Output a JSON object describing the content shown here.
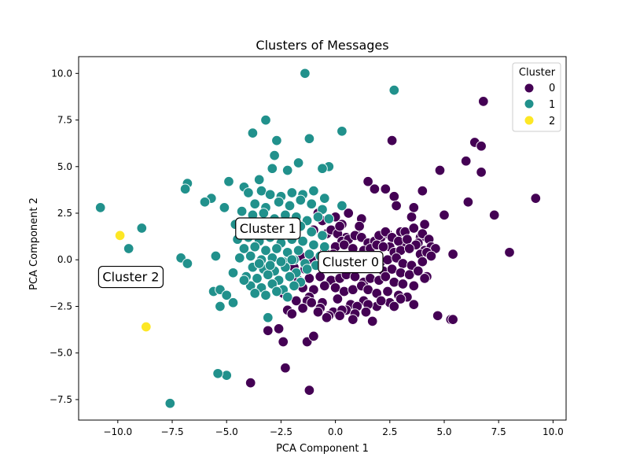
{
  "chart_data": {
    "type": "scatter",
    "title": "Clusters of Messages",
    "xlabel": "PCA Component 1",
    "ylabel": "PCA Component 2",
    "xlim": [
      -11.8,
      10.6
    ],
    "ylim": [
      -8.6,
      10.9
    ],
    "xticks": [
      -10.0,
      -7.5,
      -5.0,
      -2.5,
      0.0,
      2.5,
      5.0,
      7.5,
      10.0
    ],
    "yticks": [
      -7.5,
      -5.0,
      -2.5,
      0.0,
      2.5,
      5.0,
      7.5,
      10.0
    ],
    "xtick_labels": [
      "−10.0",
      "−7.5",
      "−5.0",
      "−2.5",
      "0.0",
      "2.5",
      "5.0",
      "7.5",
      "10.0"
    ],
    "ytick_labels": [
      "−7.5",
      "−5.0",
      "−2.5",
      "0.0",
      "2.5",
      "5.0",
      "7.5",
      "10.0"
    ],
    "grid": false,
    "legend": {
      "title": "Cluster",
      "placement": "top-right",
      "entries": [
        {
          "label": "0",
          "color": "#440154"
        },
        {
          "label": "1",
          "color": "#21918c"
        },
        {
          "label": "2",
          "color": "#fde725"
        }
      ]
    },
    "annotations": [
      {
        "text": "Cluster 1",
        "x": -3.1,
        "y": 1.7
      },
      {
        "text": "Cluster 0",
        "x": 0.7,
        "y": -0.1
      },
      {
        "text": "Cluster 2",
        "x": -9.4,
        "y": -0.9
      }
    ],
    "series": [
      {
        "name": "0",
        "color": "#440154",
        "x": [
          6.8,
          2.6,
          6.4,
          6.7,
          9.2,
          4.8,
          4.0,
          6.0,
          6.7,
          6.1,
          7.3,
          5.0,
          8.0,
          5.4,
          4.7,
          5.3,
          5.4,
          1.5,
          1.8,
          2.3,
          2.7,
          2.8,
          3.0,
          3.5,
          3.6,
          4.1,
          3.9,
          -2.3,
          -3.1,
          -2.6,
          -2.4,
          -1.3,
          -1.0,
          -2.2,
          -3.9,
          -1.2,
          1.7,
          -0.4,
          0.5,
          1.0,
          2.1,
          2.4,
          3.2,
          3.6,
          4.0,
          4.3,
          3.8,
          3.2,
          2.5,
          -0.2,
          0.1,
          0.3,
          0.6,
          0.9,
          1.2,
          1.5,
          1.8,
          2.0,
          2.3,
          2.6,
          2.9,
          3.3,
          3.7,
          4.1,
          4.4,
          4.6,
          -0.5,
          0.0,
          0.4,
          0.8,
          1.3,
          1.6,
          1.9,
          2.2,
          2.7,
          3.0,
          3.4,
          3.9,
          4.2,
          4.4,
          -1.6,
          -1.1,
          -0.6,
          -0.1,
          0.3,
          0.7,
          1.1,
          1.4,
          1.7,
          2.1,
          2.4,
          2.8,
          3.1,
          3.5,
          4.0,
          -1.9,
          -1.4,
          -0.9,
          -0.4,
          0.2,
          0.6,
          1.0,
          1.4,
          1.8,
          2.2,
          2.6,
          3.0,
          3.4,
          3.8,
          4.2,
          -1.7,
          -1.2,
          -0.7,
          -0.2,
          0.2,
          0.5,
          0.9,
          1.3,
          1.6,
          2.0,
          2.3,
          2.7,
          3.1,
          3.6,
          4.1,
          -1.5,
          -1.0,
          -0.5,
          0.0,
          0.4,
          0.8,
          1.2,
          1.5,
          1.9,
          2.4,
          2.9,
          3.3,
          -2.4,
          -1.8,
          -1.2,
          -0.6,
          0.1,
          0.7,
          1.3,
          1.9,
          2.5,
          3.0,
          3.6,
          -1.3,
          -0.7,
          -0.1,
          0.5,
          1.0,
          -2.0,
          -1.5,
          -0.8,
          -0.3,
          0.3,
          0.9,
          1.5,
          2.1,
          2.7,
          -1.1,
          -0.4,
          0.2,
          0.8,
          1.4,
          -0.8,
          0.0,
          0.6,
          1.2,
          -0.6,
          0.3,
          1.1,
          -1.0,
          0.2
        ],
        "y": [
          8.5,
          6.4,
          6.3,
          6.1,
          3.3,
          4.8,
          3.7,
          5.3,
          4.7,
          3.1,
          2.4,
          2.4,
          0.4,
          0.3,
          -3.0,
          -3.2,
          -3.2,
          4.2,
          3.8,
          3.8,
          3.4,
          2.9,
          1.5,
          2.3,
          2.8,
          1.9,
          1.2,
          -5.8,
          -3.8,
          -3.7,
          -4.4,
          -4.4,
          -4.1,
          -2.7,
          -6.6,
          -7.0,
          -3.3,
          1.4,
          1.2,
          1.3,
          1.2,
          1.4,
          1.5,
          1.7,
          1.4,
          1.1,
          0.9,
          0.8,
          0.7,
          1.6,
          1.4,
          1.0,
          1.1,
          1.3,
          1.2,
          0.9,
          1.0,
          1.3,
          1.5,
          1.2,
          1.0,
          1.1,
          0.8,
          0.5,
          0.7,
          0.6,
          0.5,
          0.7,
          0.8,
          0.6,
          0.5,
          0.6,
          0.8,
          0.7,
          0.4,
          0.5,
          0.6,
          0.3,
          0.4,
          0.2,
          0.2,
          0.0,
          0.1,
          0.3,
          0.2,
          0.1,
          0.0,
          0.2,
          0.1,
          -0.1,
          0.0,
          0.1,
          -0.2,
          -0.3,
          -0.1,
          -0.4,
          -0.5,
          -0.3,
          -0.4,
          -0.2,
          -0.4,
          -0.5,
          -0.3,
          -0.4,
          -0.6,
          -0.5,
          -0.7,
          -0.8,
          -0.6,
          -0.9,
          -1.1,
          -1.0,
          -0.9,
          -1.1,
          -1.0,
          -0.8,
          -0.9,
          -1.2,
          -1.0,
          -1.1,
          -0.9,
          -1.2,
          -1.3,
          -1.4,
          -1.0,
          -1.5,
          -1.6,
          -1.4,
          -1.5,
          -1.7,
          -1.6,
          -1.4,
          -1.6,
          -1.8,
          -1.7,
          -1.9,
          -2.0,
          -1.8,
          -2.2,
          -2.0,
          -2.3,
          -2.1,
          -2.4,
          -2.2,
          -2.5,
          -2.3,
          -2.1,
          -2.4,
          -2.2,
          -2.6,
          -2.8,
          -2.7,
          -2.5,
          -2.9,
          -2.6,
          -2.8,
          -3.0,
          -2.7,
          -2.9,
          -2.4,
          -2.2,
          -2.5,
          -2.3,
          -3.1,
          -3.0,
          -3.2,
          -2.8,
          2.5,
          2.3,
          2.5,
          2.2,
          2.1,
          1.9,
          1.8,
          1.6,
          1.8
        ]
      },
      {
        "name": "1",
        "color": "#21918c",
        "x": [
          -1.4,
          2.7,
          -3.2,
          -3.8,
          0.3,
          -2.7,
          -2.8,
          -1.2,
          -1.7,
          -0.3,
          -0.6,
          -2.2,
          -3.5,
          -2.9,
          -4.9,
          -6.8,
          -6.9,
          -5.7,
          -6.0,
          -5.1,
          -10.8,
          -8.9,
          -9.5,
          -7.1,
          -6.8,
          -5.5,
          -5.6,
          -5.3,
          -5.0,
          -4.7,
          -5.3,
          -7.6,
          -5.0,
          -5.4,
          -3.1,
          -4.2,
          -4.0,
          -3.4,
          -3.0,
          -2.5,
          -2.0,
          -1.5,
          -1.0,
          -0.5,
          0.3,
          -3.7,
          -3.2,
          -2.6,
          -2.1,
          -1.6,
          -1.1,
          -0.6,
          -4.3,
          -3.8,
          -3.3,
          -2.8,
          -2.3,
          -1.8,
          -1.3,
          -0.8,
          -0.3,
          -4.6,
          -4.1,
          -3.6,
          -3.1,
          -2.6,
          -2.1,
          -1.6,
          -1.1,
          -0.6,
          -4.5,
          -4.0,
          -3.5,
          -3.0,
          -2.5,
          -2.0,
          -1.5,
          -1.0,
          -0.5,
          -4.2,
          -3.7,
          -3.2,
          -2.7,
          -2.2,
          -1.7,
          -1.2,
          -0.7,
          -4.4,
          -3.9,
          -3.4,
          -2.9,
          -2.4,
          -1.9,
          -1.4,
          -0.9,
          -3.8,
          -3.3,
          -2.8,
          -2.3,
          -1.8,
          -1.3,
          -4.1,
          -3.6,
          -3.1,
          -2.6,
          -2.1,
          -1.6,
          -3.9,
          -3.4,
          -2.9,
          -2.4,
          -1.9,
          -4.7,
          -4.2,
          -3.7,
          -3.2,
          -2.7,
          -2.2,
          -3.5,
          -3.0,
          -2.5,
          -2.0
        ],
        "y": [
          10.0,
          9.1,
          7.5,
          6.8,
          6.9,
          6.4,
          5.6,
          6.5,
          5.2,
          5.0,
          4.9,
          4.8,
          4.3,
          4.9,
          4.2,
          4.1,
          3.8,
          3.3,
          3.1,
          2.8,
          2.8,
          1.7,
          0.6,
          0.1,
          -0.2,
          0.2,
          -1.7,
          -1.6,
          -1.9,
          -2.3,
          -2.5,
          -7.7,
          -6.2,
          -6.1,
          -3.1,
          3.9,
          3.6,
          3.7,
          3.5,
          3.4,
          3.6,
          3.5,
          3.7,
          3.3,
          2.9,
          3.0,
          2.8,
          3.1,
          2.9,
          3.2,
          3.0,
          2.7,
          2.6,
          2.4,
          2.5,
          2.2,
          2.4,
          2.3,
          2.1,
          2.3,
          2.2,
          1.9,
          2.0,
          1.8,
          1.7,
          1.9,
          1.6,
          1.8,
          1.5,
          1.3,
          1.1,
          1.2,
          1.0,
          1.2,
          0.9,
          1.1,
          1.0,
          0.8,
          0.7,
          0.6,
          0.7,
          0.5,
          0.6,
          0.4,
          0.5,
          0.3,
          0.2,
          0.1,
          0.2,
          0.0,
          0.1,
          -0.1,
          0.0,
          -0.2,
          -0.3,
          -0.4,
          -0.5,
          -0.6,
          -0.4,
          -0.7,
          -0.5,
          -0.9,
          -1.0,
          -0.8,
          -1.1,
          -0.9,
          -1.2,
          -1.4,
          -1.5,
          -1.3,
          -1.6,
          -1.4,
          -0.7,
          -1.1,
          -1.8,
          -1.9,
          -1.7,
          -2.0,
          -0.2,
          -0.3,
          -0.1,
          0.0
        ]
      },
      {
        "name": "2",
        "color": "#fde725",
        "x": [
          -9.9,
          -8.7
        ],
        "y": [
          1.3,
          -3.6
        ]
      }
    ]
  }
}
